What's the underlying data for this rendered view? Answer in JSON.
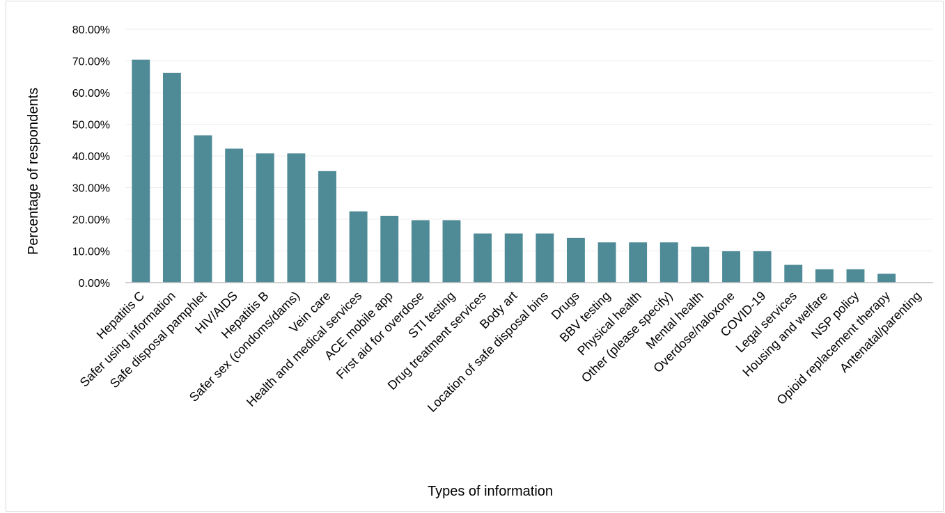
{
  "chart_data": {
    "type": "bar",
    "title": "",
    "xlabel": "Types of information",
    "ylabel": "Percentage of respondents",
    "ylim": [
      0,
      80
    ],
    "y_tick_step": 10,
    "y_tick_labels": [
      "0.00%",
      "10.00%",
      "20.00%",
      "30.00%",
      "40.00%",
      "50.00%",
      "60.00%",
      "70.00%",
      "80.00%"
    ],
    "grid": true,
    "legend": "none",
    "bar_color": "#4e8b96",
    "categories": [
      "Hepatitis C",
      "Safer using information",
      "Safe disposal pamphlet",
      "HIV/AIDS",
      "Hepatitis B",
      "Safer sex (condoms/dams)",
      "Vein care",
      "Health and medical services",
      "ACE mobile app",
      "First aid for overdose",
      "STI testing",
      "Drug treatment services",
      "Body art",
      "Location of safe disposal bins",
      "Drugs",
      "BBV testing",
      "Physical health",
      "Other (please specify)",
      "Mental health",
      "Overdose/naloxone",
      "COVID-19",
      "Legal services",
      "Housing and welfare",
      "NSP policy",
      "Opioid replacement therapy",
      "Antenatal/parenting"
    ],
    "values": [
      70.4,
      66.2,
      46.5,
      42.3,
      40.8,
      40.8,
      35.2,
      22.5,
      21.1,
      19.7,
      19.7,
      15.5,
      15.5,
      15.5,
      14.1,
      12.7,
      12.7,
      12.7,
      11.3,
      9.9,
      9.9,
      5.6,
      4.2,
      4.2,
      2.8,
      0
    ]
  }
}
